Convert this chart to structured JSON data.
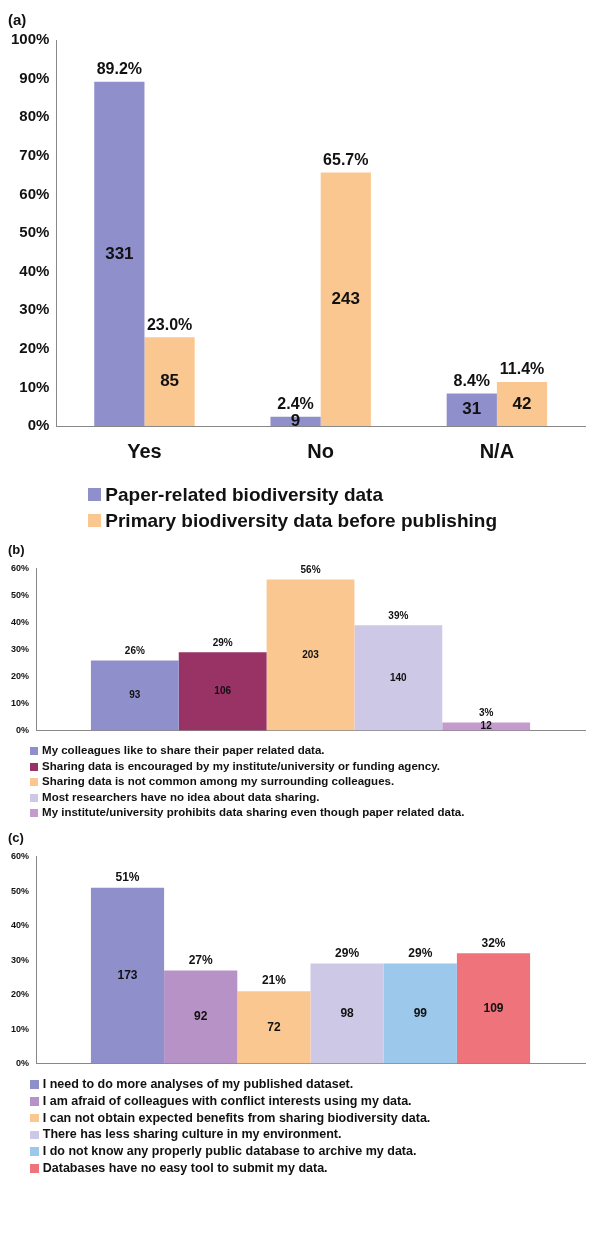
{
  "chart_data": [
    {
      "type": "bar",
      "title": "(a)",
      "categories": [
        "Yes",
        "No",
        "N/A"
      ],
      "series": [
        {
          "name": "Paper-related biodiversity data",
          "color": "#8f8fcc",
          "values": [
            89.2,
            2.4,
            8.4
          ],
          "value_labels": [
            "89.2%",
            "2.4%",
            "8.4%"
          ]
        },
        {
          "name": "Primary biodiversity data before publishing",
          "color": "#fbc791",
          "values": [
            23.0,
            65.7,
            11.4
          ],
          "value_labels": [
            "23.0%",
            "65.7%",
            "11.4%"
          ]
        }
      ],
      "annotations": [
        "331",
        "9",
        "31",
        "85",
        "243",
        "42"
      ],
      "ylim": [
        0,
        100
      ],
      "yticks": [
        {
          "value": 0,
          "label": "0%"
        },
        {
          "value": 10,
          "label": "10%"
        },
        {
          "value": 20,
          "label": "20%"
        },
        {
          "value": 30,
          "label": "30%"
        },
        {
          "value": 40,
          "label": "40%"
        },
        {
          "value": 50,
          "label": "50%"
        },
        {
          "value": 60,
          "label": "60%"
        },
        {
          "value": 70,
          "label": "70%"
        },
        {
          "value": 80,
          "label": "80%"
        },
        {
          "value": 90,
          "label": "90%"
        },
        {
          "value": 100,
          "label": "100%"
        }
      ],
      "legend": "bottom"
    },
    {
      "type": "bar",
      "title": "(b)",
      "categories": [
        null
      ],
      "series": [
        {
          "name": "My colleagues like to share their paper related data.",
          "color": "#8f8fcc",
          "values": [
            26
          ],
          "value_labels": [
            "26%"
          ]
        },
        {
          "name": "Sharing data is encouraged by my institute/university or funding agency.",
          "color": "#993366",
          "values": [
            29
          ],
          "value_labels": [
            "29%"
          ]
        },
        {
          "name": "Sharing data is not common among my surrounding colleagues.",
          "color": "#fbc791",
          "values": [
            56
          ],
          "value_labels": [
            "56%"
          ]
        },
        {
          "name": "Most researchers have no idea about data sharing.",
          "color": "#ccc8e6",
          "values": [
            39
          ],
          "value_labels": [
            "39%"
          ]
        },
        {
          "name": "My institute/university prohibits data sharing even though paper related data.",
          "color": "#c59acd",
          "values": [
            3
          ],
          "value_labels": [
            "3%"
          ]
        }
      ],
      "annotations": [
        "93",
        "106",
        "203",
        "140",
        "12"
      ],
      "ylim": [
        0,
        60
      ],
      "yticks": [
        {
          "value": 0,
          "label": "0%"
        },
        {
          "value": 10,
          "label": "10%"
        },
        {
          "value": 20,
          "label": "20%"
        },
        {
          "value": 30,
          "label": "30%"
        },
        {
          "value": 40,
          "label": "40%"
        },
        {
          "value": 50,
          "label": "50%"
        },
        {
          "value": 60,
          "label": "60%"
        }
      ],
      "legend": "bottom"
    },
    {
      "type": "bar",
      "title": "(c)",
      "categories": [
        null
      ],
      "series": [
        {
          "name": "I need to do more analyses of my published dataset.",
          "color": "#8f8fcc",
          "values": [
            51
          ],
          "value_labels": [
            "51%"
          ]
        },
        {
          "name": "I am afraid of colleagues with conflict interests using my data.",
          "color": "#b792c6",
          "values": [
            27
          ],
          "value_labels": [
            "27%"
          ]
        },
        {
          "name": "I can not obtain expected benefits from sharing biodiversity data.",
          "color": "#fbc791",
          "values": [
            21
          ],
          "value_labels": [
            "21%"
          ]
        },
        {
          "name": "There has less sharing culture in my environment.",
          "color": "#ccc8e6",
          "values": [
            29
          ],
          "value_labels": [
            "29%"
          ]
        },
        {
          "name": "I do not know any properly public database to archive my data.",
          "color": "#9cc8ec",
          "values": [
            29
          ],
          "value_labels": [
            "29%"
          ]
        },
        {
          "name": "Databases have no easy tool to submit my data.",
          "color": "#ef737b",
          "values": [
            32
          ],
          "value_labels": [
            "32%"
          ]
        }
      ],
      "annotations": [
        "173",
        "92",
        "72",
        "98",
        "99",
        "109"
      ],
      "ylim": [
        0,
        60
      ],
      "yticks": [
        {
          "value": 0,
          "label": "0%"
        },
        {
          "value": 10,
          "label": "10%"
        },
        {
          "value": 20,
          "label": "20%"
        },
        {
          "value": 30,
          "label": "30%"
        },
        {
          "value": 40,
          "label": "40%"
        },
        {
          "value": 50,
          "label": "50%"
        },
        {
          "value": 60,
          "label": "60%"
        }
      ],
      "legend": "bottom"
    }
  ]
}
